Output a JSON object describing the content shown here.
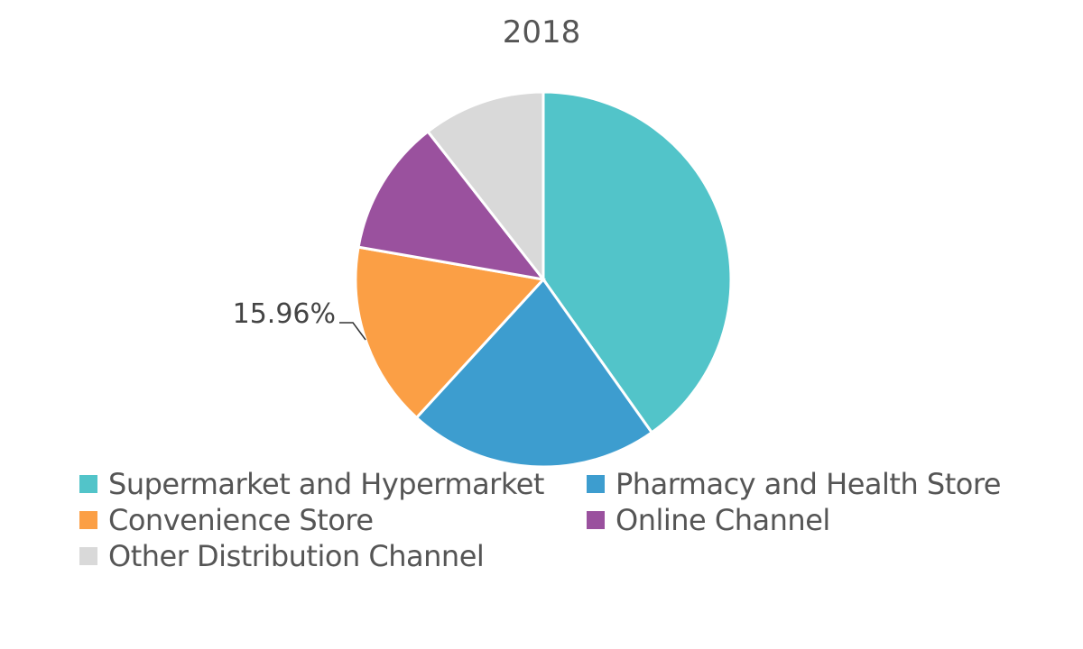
{
  "chart_data": {
    "type": "pie",
    "title": "2018",
    "categories": [
      "Supermarket and Hypermarket",
      "Pharmacy and Health Store",
      "Convenience Store",
      "Online Channel",
      "Other Distribution Channel"
    ],
    "values": [
      40.2,
      21.6,
      15.96,
      11.7,
      10.54
    ],
    "colors": [
      "#52c4c9",
      "#3d9dcf",
      "#fb9f45",
      "#9a519e",
      "#d9d9d9"
    ],
    "data_labels": [
      {
        "category": "Convenience Store",
        "text": "15.96%"
      }
    ],
    "legend_position": "bottom"
  }
}
